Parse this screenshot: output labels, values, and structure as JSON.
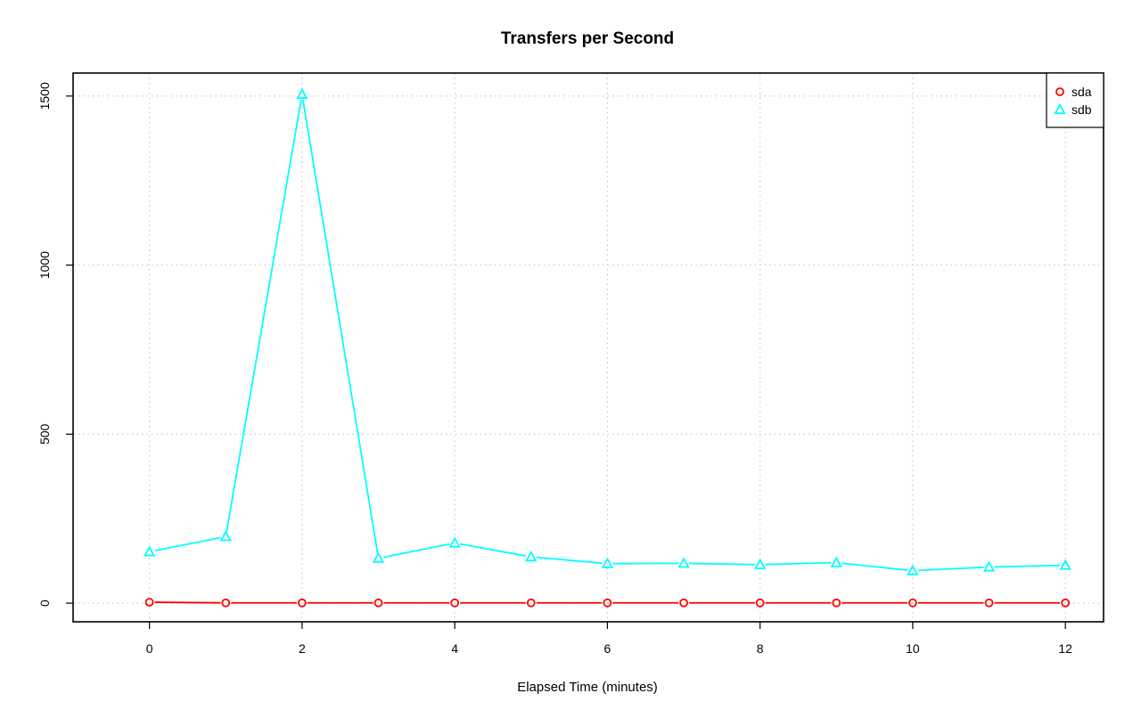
{
  "chart_data": {
    "type": "line",
    "title": "Transfers per Second",
    "xlabel": "Elapsed Time (minutes)",
    "ylabel": "",
    "x": [
      0,
      1,
      2,
      3,
      4,
      5,
      6,
      7,
      8,
      9,
      10,
      11,
      12
    ],
    "xlim": [
      -1.0,
      12.5
    ],
    "ylim": [
      -55,
      1568
    ],
    "x_ticks": [
      0,
      2,
      4,
      6,
      8,
      10,
      12
    ],
    "y_ticks": [
      0,
      500,
      1000,
      1500
    ],
    "x_tick_labels": [
      "0",
      "2",
      "4",
      "6",
      "8",
      "10",
      "12"
    ],
    "y_tick_labels": [
      "0",
      "500",
      "1000",
      "1500"
    ],
    "grid": true,
    "legend_position": "top-right",
    "series": [
      {
        "name": "sda",
        "color": "#ff0000",
        "marker": "circle",
        "values": [
          3,
          1,
          1,
          1,
          1,
          1,
          1,
          1,
          1,
          1,
          1,
          1,
          1
        ]
      },
      {
        "name": "sdb",
        "color": "#00ffff",
        "marker": "triangle",
        "values": [
          152,
          197,
          1505,
          133,
          178,
          137,
          117,
          118,
          114,
          120,
          96,
          107,
          112
        ]
      }
    ]
  }
}
